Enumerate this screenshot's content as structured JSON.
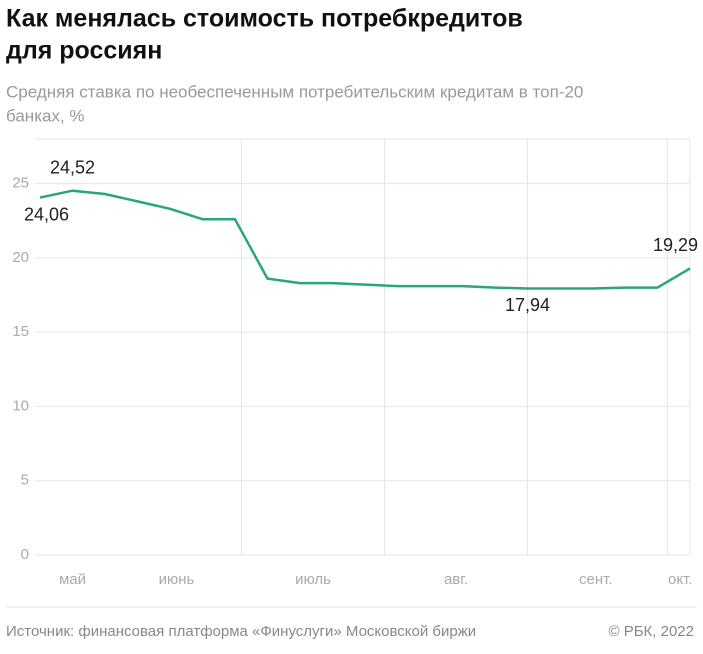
{
  "chart_data": {
    "type": "line",
    "title": [
      "Как менялась стоимость потребкредитов",
      "для россиян"
    ],
    "subtitle": [
      "Средняя ставка по необеспеченным потребительским кредитам в топ-20",
      "банках, %"
    ],
    "x": [
      0,
      1,
      2,
      3,
      4,
      5,
      6,
      7,
      8,
      9,
      10,
      11,
      12,
      13,
      14,
      15,
      16,
      17,
      18,
      19,
      20
    ],
    "xlim": [
      0,
      20
    ],
    "xticks": [
      {
        "value": 1.0,
        "label": "май"
      },
      {
        "value": 4.2,
        "label": "июнь"
      },
      {
        "value": 8.4,
        "label": "июль"
      },
      {
        "value": 12.8,
        "label": "авг."
      },
      {
        "value": 17.1,
        "label": "сент."
      },
      {
        "value": 19.7,
        "label": "окт."
      }
    ],
    "x_grid_lines": [
      6.2,
      10.6,
      15.0,
      19.3,
      20
    ],
    "series": [
      {
        "color": "#2aa67c",
        "values": [
          24.06,
          24.52,
          24.3,
          23.8,
          23.3,
          22.6,
          22.6,
          18.6,
          18.3,
          18.3,
          18.2,
          18.1,
          18.1,
          18.1,
          18.0,
          17.94,
          17.94,
          17.94,
          18.0,
          18.0,
          19.29
        ],
        "value_labels": [
          "24,06",
          "24,52",
          null,
          null,
          null,
          null,
          null,
          null,
          null,
          null,
          null,
          null,
          null,
          null,
          null,
          "17,94",
          null,
          null,
          null,
          null,
          "19,29"
        ]
      }
    ],
    "ylim": [
      0,
      28
    ],
    "yticks": [
      0,
      5,
      10,
      15,
      20,
      25
    ],
    "grid": true,
    "source": "Источник: финансовая платформа «Финуслуги» Московской биржи",
    "credit": "© РБК, 2022"
  }
}
